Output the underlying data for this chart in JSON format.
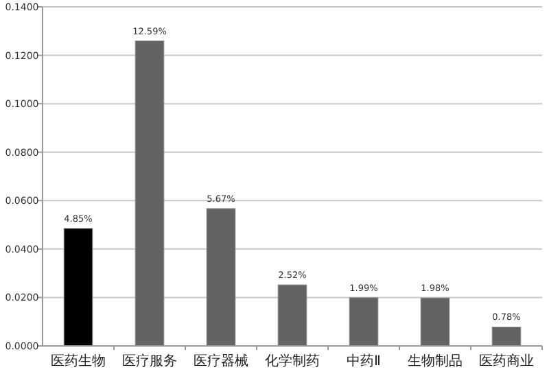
{
  "chart_data": {
    "type": "bar",
    "categories": [
      "医药生物",
      "医疗服务",
      "医疗器械",
      "化学制药",
      "中药Ⅱ",
      "生物制品",
      "医药商业"
    ],
    "values": [
      0.0485,
      0.1259,
      0.0567,
      0.0252,
      0.0199,
      0.0198,
      0.0078
    ],
    "value_labels": [
      "4.85%",
      "12.59%",
      "5.67%",
      "2.52%",
      "1.99%",
      "1.98%",
      "0.78%"
    ],
    "colors": [
      "#000000",
      "#636363",
      "#636363",
      "#636363",
      "#636363",
      "#636363",
      "#636363"
    ],
    "ylim": [
      0,
      0.14
    ],
    "yticks": [
      {
        "value": 0,
        "label": "0.0000"
      },
      {
        "value": 0.02,
        "label": "0.0200"
      },
      {
        "value": 0.04,
        "label": "0.0400"
      },
      {
        "value": 0.06,
        "label": "0.0600"
      },
      {
        "value": 0.08,
        "label": "0.0800"
      },
      {
        "value": 0.1,
        "label": "0.1000"
      },
      {
        "value": 0.12,
        "label": "0.1200"
      },
      {
        "value": 0.14,
        "label": "0.1400"
      }
    ],
    "grid": "y"
  }
}
